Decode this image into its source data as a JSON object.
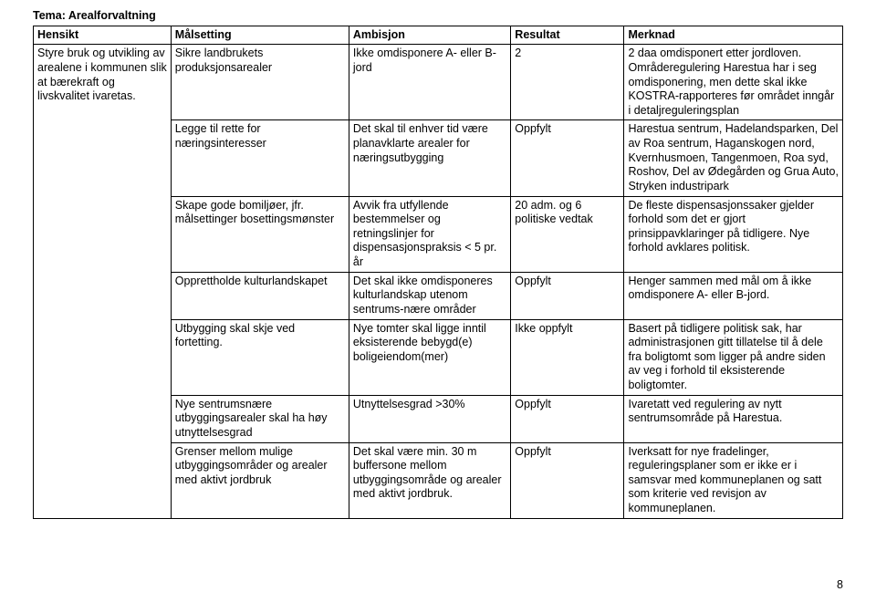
{
  "theme_label": "Tema: Arealforvaltning",
  "headers": {
    "c1": "Hensikt",
    "c2": "Målsetting",
    "c3": "Ambisjon",
    "c4": "Resultat",
    "c5": "Merknad"
  },
  "col1": "Styre bruk og utvikling av arealene i kommunen slik at bærekraft og livskvalitet ivaretas.",
  "rows": [
    {
      "c2": "Sikre landbrukets produksjonsarealer",
      "c3": "Ikke omdisponere A- eller B-jord",
      "c4": "2",
      "c5": "2 daa omdisponert etter jordloven. Områderegulering Harestua har i seg omdisponering, men dette skal ikke KOSTRA-rapporteres før området inngår i detaljreguleringsplan"
    },
    {
      "c2": "Legge til rette for næringsinteresser",
      "c3": "Det skal til enhver tid være planavklarte arealer for næringsutbygging",
      "c4": "Oppfylt",
      "c5": "Harestua sentrum, Hadelandsparken, Del av Roa sentrum, Haganskogen nord, Kvernhusmoen, Tangenmoen, Roa syd, Roshov, Del av Ødegården og Grua Auto, Stryken industripark"
    },
    {
      "c2": "Skape gode bomiljøer, jfr. målsettinger bosettingsmønster",
      "c3": "Avvik fra utfyllende bestemmelser og retningslinjer for dispensasjonspraksis < 5 pr. år",
      "c4": "20 adm. og 6 politiske vedtak",
      "c5": "De fleste dispensasjonssaker gjelder forhold som det er gjort prinsippavklaringer på tidligere. Nye forhold avklares politisk."
    },
    {
      "c2": "Opprettholde kulturlandskapet",
      "c3": "Det skal ikke omdisponeres kulturlandskap utenom sentrums-nære områder",
      "c4": "Oppfylt",
      "c5": "Henger sammen med mål om å ikke omdisponere A- eller B-jord."
    },
    {
      "c2": "Utbygging skal skje ved fortetting.",
      "c3": "Nye tomter skal ligge inntil eksisterende bebygd(e) boligeiendom(mer)",
      "c4": "Ikke oppfylt",
      "c5": "Basert på tidligere politisk sak, har administrasjonen gitt tillatelse til å dele fra boligtomt som ligger på andre siden av veg i forhold til eksisterende boligtomter."
    },
    {
      "c2": "Nye sentrumsnære utbyggingsarealer skal ha høy utnyttelsesgrad",
      "c3": "Utnyttelsesgrad >30%",
      "c4": "Oppfylt",
      "c5": "Ivaretatt ved regulering av nytt sentrumsområde på Harestua."
    },
    {
      "c2": "Grenser mellom mulige utbyggingsområder og arealer med aktivt jordbruk",
      "c3": "Det skal være min. 30 m buffersone mellom utbyggingsområde og arealer med aktivt jordbruk.",
      "c4": "Oppfylt",
      "c5": "Iverksatt for nye fradelinger, reguleringsplaner som er ikke er i samsvar med kommuneplanen og satt som kriterie ved revisjon av kommuneplanen."
    }
  ],
  "page_number": "8"
}
